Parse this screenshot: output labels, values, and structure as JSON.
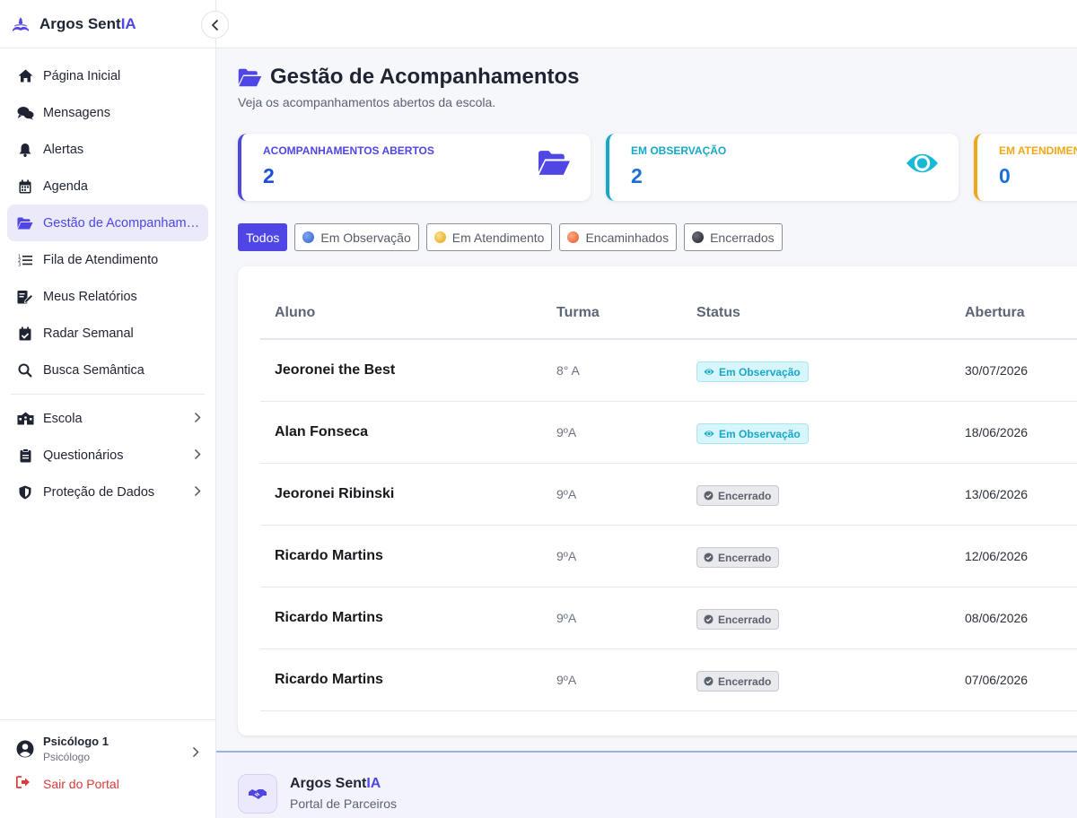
{
  "brand": {
    "name_prefix": "Argos Sent",
    "name_suffix": "IA"
  },
  "sidebar": {
    "items": [
      {
        "label": "Página Inicial",
        "icon": "home-icon"
      },
      {
        "label": "Mensagens",
        "icon": "chat-icon"
      },
      {
        "label": "Alertas",
        "icon": "bell-icon"
      },
      {
        "label": "Agenda",
        "icon": "calendar-icon"
      },
      {
        "label": "Gestão de Acompanhamentos",
        "icon": "folder-open-icon",
        "active": true
      },
      {
        "label": "Fila de Atendimento",
        "icon": "list-ordered-icon"
      },
      {
        "label": "Meus Relatórios",
        "icon": "report-edit-icon"
      },
      {
        "label": "Radar Semanal",
        "icon": "calendar-check-icon"
      },
      {
        "label": "Busca Semântica",
        "icon": "search-icon"
      }
    ],
    "groups": [
      {
        "label": "Escola",
        "icon": "school-icon"
      },
      {
        "label": "Questionários",
        "icon": "clipboard-icon"
      },
      {
        "label": "Proteção de Dados",
        "icon": "shield-icon"
      }
    ],
    "user": {
      "name": "Psicólogo 1",
      "role": "Psicólogo"
    },
    "logout_label": "Sair do Portal"
  },
  "page": {
    "title": "Gestão de Acompanhamentos",
    "subtitle": "Veja os acompanhamentos abertos da escola."
  },
  "cards": [
    {
      "label": "ACOMPANHAMENTOS ABERTOS",
      "value": "2",
      "color": "#4f46e5",
      "value_color": "#1d4ed8",
      "icon": "folder-open-icon"
    },
    {
      "label": "EM OBSERVAÇÃO",
      "value": "2",
      "color": "#17a7c9",
      "value_color": "#1d6fd8",
      "icon": "eye-icon"
    },
    {
      "label": "EM ATENDIMENTO",
      "value": "0",
      "color": "#f0a81b",
      "value_color": "#1d6fd8",
      "icon": "chat-icon"
    }
  ],
  "filters": [
    {
      "label": "Todos",
      "active": true
    },
    {
      "label": "Em Observação",
      "dot": "#3b6fd8"
    },
    {
      "label": "Em Atendimento",
      "dot": "#f0b429"
    },
    {
      "label": "Encaminhados",
      "dot": "#f06a3b"
    },
    {
      "label": "Encerrados",
      "dot": "#2a2d36"
    }
  ],
  "table": {
    "headers": {
      "aluno": "Aluno",
      "turma": "Turma",
      "status": "Status",
      "abertura": "Abertura"
    },
    "rows": [
      {
        "aluno": "Jeoronei the Best",
        "turma": "8° A",
        "status": "Em Observação",
        "status_type": "obs",
        "abertura": "30/07/2026"
      },
      {
        "aluno": "Alan Fonseca",
        "turma": "9ºA",
        "status": "Em Observação",
        "status_type": "obs",
        "abertura": "18/06/2026"
      },
      {
        "aluno": "Jeoronei Ribinski",
        "turma": "9ºA",
        "status": "Encerrado",
        "status_type": "enc",
        "abertura": "13/06/2026"
      },
      {
        "aluno": "Ricardo Martins",
        "turma": "9ºA",
        "status": "Encerrado",
        "status_type": "enc",
        "abertura": "12/06/2026"
      },
      {
        "aluno": "Ricardo Martins",
        "turma": "9ºA",
        "status": "Encerrado",
        "status_type": "enc",
        "abertura": "08/06/2026"
      },
      {
        "aluno": "Ricardo Martins",
        "turma": "9ºA",
        "status": "Encerrado",
        "status_type": "enc",
        "abertura": "07/06/2026"
      }
    ]
  },
  "footer": {
    "name_prefix": "Argos Sent",
    "name_suffix": "IA",
    "subtitle": "Portal de Parceiros"
  }
}
